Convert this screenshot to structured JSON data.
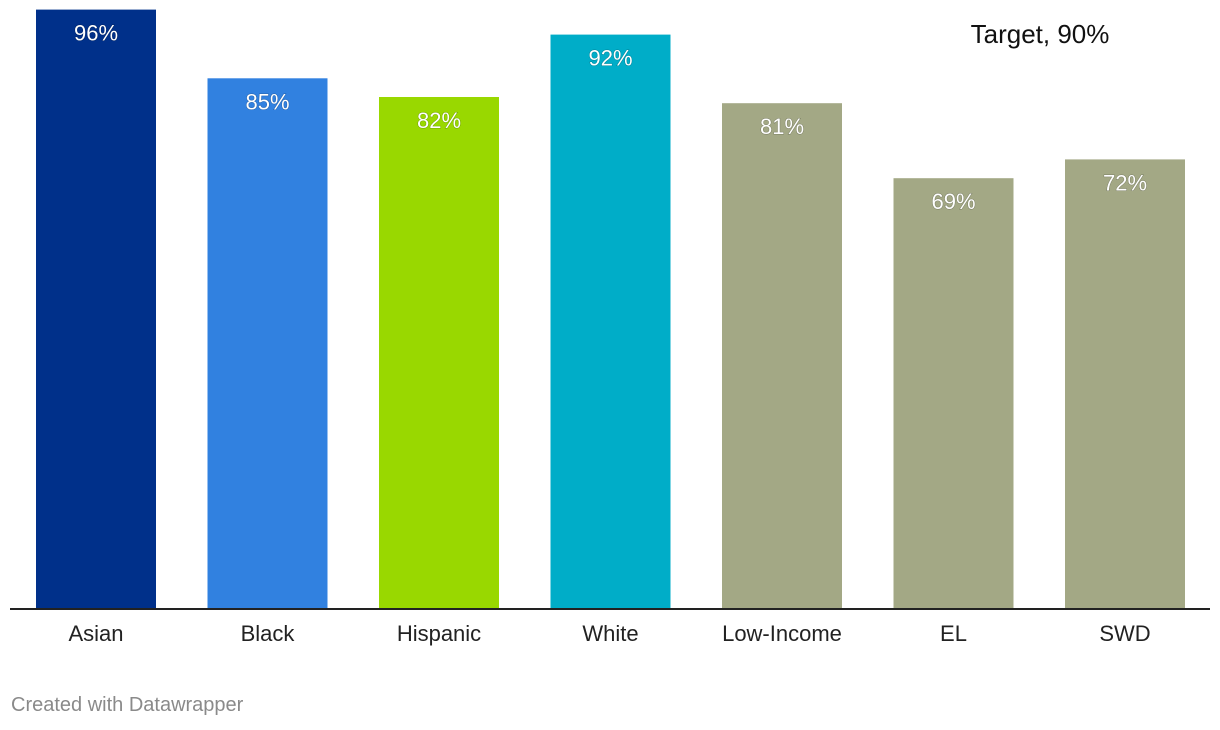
{
  "chart_data": {
    "type": "bar",
    "categories": [
      "Asian",
      "Black",
      "Hispanic",
      "White",
      "Low-Income",
      "EL",
      "SWD"
    ],
    "values": [
      96,
      85,
      82,
      92,
      81,
      69,
      72
    ],
    "value_labels": [
      "96%",
      "85%",
      "82%",
      "92%",
      "81%",
      "69%",
      "72%"
    ],
    "colors": [
      "#00308a",
      "#3181e0",
      "#99d800",
      "#00adc8",
      "#a3a885",
      "#a3a885",
      "#a3a885"
    ],
    "label_text_color": "#ffffff",
    "ylim": [
      0,
      100
    ],
    "grid": false,
    "annotation": {
      "label": "Target, 90%",
      "value": 90
    },
    "title": "",
    "xlabel": "",
    "ylabel": ""
  },
  "footer": {
    "credit": "Created with Datawrapper"
  }
}
